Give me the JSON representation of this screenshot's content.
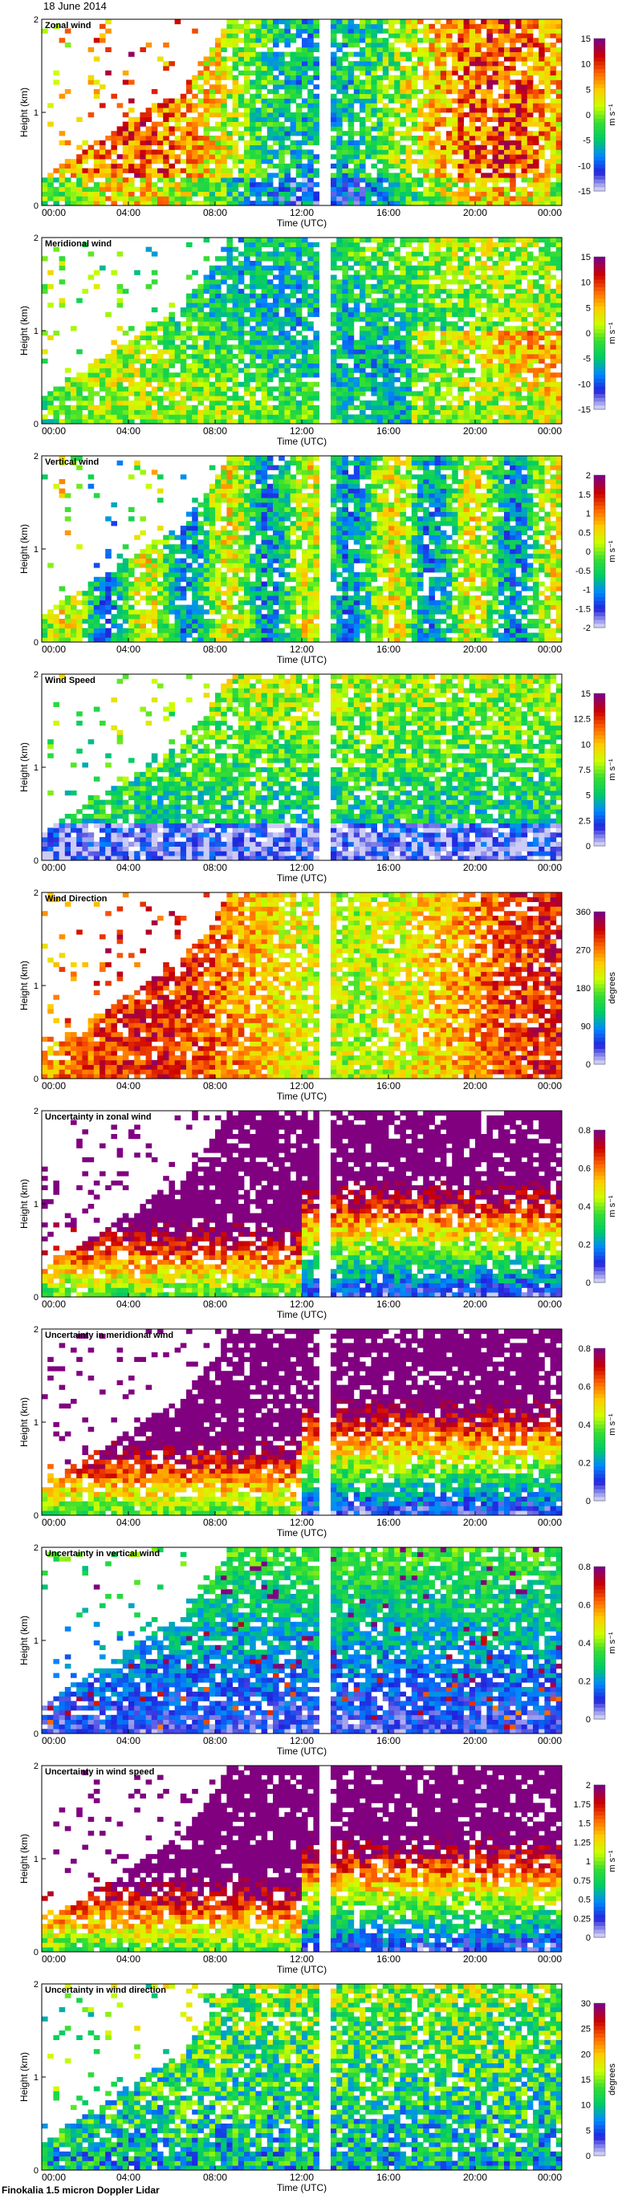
{
  "figure": {
    "date": "18 June 2014",
    "footer": "Finokalia 1.5 micron Doppler Lidar"
  },
  "chart_data": [
    {
      "type": "heatmap",
      "title": "Zonal wind",
      "xlabel": "Time (UTC)",
      "ylabel": "Height (km)",
      "xticks": [
        "00:00",
        "04:00",
        "08:00",
        "12:00",
        "16:00",
        "20:00",
        "00:00"
      ],
      "yticks": [
        "0",
        "1",
        "2"
      ],
      "ylim": [
        0,
        2
      ],
      "colorbar": {
        "label": "m s⁻¹",
        "ticks": [
          "15",
          "10",
          "5",
          "0",
          "-5",
          "-10",
          "-15"
        ],
        "range": [
          -15,
          15
        ],
        "colormap": "rainbow"
      },
      "pattern": "signed"
    },
    {
      "type": "heatmap",
      "title": "Meridional wind",
      "xlabel": "Time (UTC)",
      "ylabel": "Height (km)",
      "xticks": [
        "00:00",
        "04:00",
        "08:00",
        "12:00",
        "16:00",
        "20:00",
        "00:00"
      ],
      "yticks": [
        "0",
        "1",
        "2"
      ],
      "ylim": [
        0,
        2
      ],
      "colorbar": {
        "label": "m s⁻¹",
        "ticks": [
          "15",
          "10",
          "5",
          "0",
          "-5",
          "-10",
          "-15"
        ],
        "range": [
          -15,
          15
        ],
        "colormap": "rainbow"
      },
      "pattern": "signed-low"
    },
    {
      "type": "heatmap",
      "title": "Vertical wind",
      "xlabel": "Time (UTC)",
      "ylabel": "Height (km)",
      "xticks": [
        "00:00",
        "04:00",
        "08:00",
        "12:00",
        "16:00",
        "20:00",
        "00:00"
      ],
      "yticks": [
        "0",
        "1",
        "2"
      ],
      "ylim": [
        0,
        2
      ],
      "colorbar": {
        "label": "m s⁻¹",
        "ticks": [
          "2",
          "1.5",
          "1",
          "0.5",
          "0",
          "-0.5",
          "-1",
          "-1.5",
          "-2"
        ],
        "range": [
          -2,
          2
        ],
        "colormap": "rainbow"
      },
      "pattern": "vertical"
    },
    {
      "type": "heatmap",
      "title": "Wind Speed",
      "xlabel": "Time (UTC)",
      "ylabel": "Height (km)",
      "xticks": [
        "00:00",
        "04:00",
        "08:00",
        "12:00",
        "16:00",
        "20:00",
        "00:00"
      ],
      "yticks": [
        "0",
        "1",
        "2"
      ],
      "ylim": [
        0,
        2
      ],
      "colorbar": {
        "label": "m s⁻¹",
        "ticks": [
          "15",
          "12.5",
          "10",
          "7.5",
          "5",
          "2.5",
          "0"
        ],
        "range": [
          0,
          15
        ],
        "colormap": "rainbow"
      },
      "pattern": "speed"
    },
    {
      "type": "heatmap",
      "title": "Wind Direction",
      "xlabel": "Time (UTC)",
      "ylabel": "Height (km)",
      "xticks": [
        "00:00",
        "04:00",
        "08:00",
        "12:00",
        "16:00",
        "20:00",
        "00:00"
      ],
      "yticks": [
        "0",
        "1",
        "2"
      ],
      "ylim": [
        0,
        2
      ],
      "colorbar": {
        "label": "degrees",
        "ticks": [
          "360",
          "270",
          "180",
          "90",
          "0"
        ],
        "range": [
          0,
          360
        ],
        "colormap": "rainbow"
      },
      "pattern": "direction"
    },
    {
      "type": "heatmap",
      "title": "Uncertainty in zonal wind",
      "xlabel": "Time (UTC)",
      "ylabel": "Height (km)",
      "xticks": [
        "00:00",
        "04:00",
        "08:00",
        "12:00",
        "16:00",
        "20:00",
        "00:00"
      ],
      "yticks": [
        "0",
        "1",
        "2"
      ],
      "ylim": [
        0,
        2
      ],
      "colorbar": {
        "label": "m s⁻¹",
        "ticks": [
          "0.8",
          "0.6",
          "0.4",
          "0.2",
          "0"
        ],
        "range": [
          0,
          1
        ],
        "colormap": "rainbow"
      },
      "pattern": "uncert"
    },
    {
      "type": "heatmap",
      "title": "Uncertainty in meridional wind",
      "xlabel": "Time (UTC)",
      "ylabel": "Height (km)",
      "xticks": [
        "00:00",
        "04:00",
        "08:00",
        "12:00",
        "16:00",
        "20:00",
        "00:00"
      ],
      "yticks": [
        "0",
        "1",
        "2"
      ],
      "ylim": [
        0,
        2
      ],
      "colorbar": {
        "label": "m s⁻¹",
        "ticks": [
          "0.8",
          "0.6",
          "0.4",
          "0.2",
          "0"
        ],
        "range": [
          0,
          1
        ],
        "colormap": "rainbow"
      },
      "pattern": "uncert"
    },
    {
      "type": "heatmap",
      "title": "Uncertainty in vertical wind",
      "xlabel": "Time (UTC)",
      "ylabel": "Height (km)",
      "xticks": [
        "00:00",
        "04:00",
        "08:00",
        "12:00",
        "16:00",
        "20:00",
        "00:00"
      ],
      "yticks": [
        "0",
        "1",
        "2"
      ],
      "ylim": [
        0,
        2
      ],
      "colorbar": {
        "label": "m s⁻¹",
        "ticks": [
          "0.8",
          "0.6",
          "0.4",
          "0.2",
          "0"
        ],
        "range": [
          0,
          1
        ],
        "colormap": "rainbow"
      },
      "pattern": "uncert-low"
    },
    {
      "type": "heatmap",
      "title": "Uncertainty in wind speed",
      "xlabel": "Time (UTC)",
      "ylabel": "Height (km)",
      "xticks": [
        "00:00",
        "04:00",
        "08:00",
        "12:00",
        "16:00",
        "20:00",
        "00:00"
      ],
      "yticks": [
        "0",
        "1",
        "2"
      ],
      "ylim": [
        0,
        2
      ],
      "colorbar": {
        "label": "m s⁻¹",
        "ticks": [
          "2",
          "1.75",
          "1.5",
          "1.25",
          "1",
          "0.75",
          "0.5",
          "0.25",
          "0"
        ],
        "range": [
          0,
          2
        ],
        "colormap": "rainbow"
      },
      "pattern": "uncert"
    },
    {
      "type": "heatmap",
      "title": "Uncertainty in wind direction",
      "xlabel": "Time (UTC)",
      "ylabel": "Height (km)",
      "xticks": [
        "00:00",
        "04:00",
        "08:00",
        "12:00",
        "16:00",
        "20:00",
        "00:00"
      ],
      "yticks": [
        "0",
        "1",
        "2"
      ],
      "ylim": [
        0,
        2
      ],
      "colorbar": {
        "label": "degrees",
        "ticks": [
          "30",
          "25",
          "20",
          "15",
          "10",
          "5",
          "0"
        ],
        "range": [
          0,
          30
        ],
        "colormap": "rainbow"
      },
      "pattern": "uncert-dir"
    }
  ]
}
